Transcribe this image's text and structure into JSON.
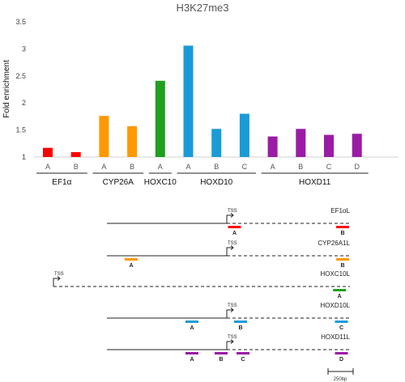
{
  "chart_data": {
    "type": "bar",
    "title": "H3K27me3",
    "ylabel": "Fold enrichment",
    "ylim": [
      1,
      3.5
    ],
    "yticks": [
      "1",
      "1.5",
      "2",
      "2.5",
      "3",
      "3.5"
    ],
    "grid": false,
    "bars": [
      {
        "group": "EF1α",
        "label": "A",
        "value": 1.17,
        "color": "#ff0000"
      },
      {
        "group": "EF1α",
        "label": "B",
        "value": 1.09,
        "color": "#ff0000"
      },
      {
        "group": "CYP26A",
        "label": "A",
        "value": 1.76,
        "color": "#ff9900"
      },
      {
        "group": "CYP26A",
        "label": "B",
        "value": 1.57,
        "color": "#ff9900"
      },
      {
        "group": "HOXC10",
        "label": "A",
        "value": 2.41,
        "color": "#1fa01f"
      },
      {
        "group": "HOXD10",
        "label": "A",
        "value": 3.06,
        "color": "#1a9bd7"
      },
      {
        "group": "HOXD10",
        "label": "B",
        "value": 1.52,
        "color": "#1a9bd7"
      },
      {
        "group": "HOXD10",
        "label": "C",
        "value": 1.8,
        "color": "#1a9bd7"
      },
      {
        "group": "HOXD11",
        "label": "A",
        "value": 1.38,
        "color": "#9b1ba6"
      },
      {
        "group": "HOXD11",
        "label": "B",
        "value": 1.52,
        "color": "#9b1ba6"
      },
      {
        "group": "HOXD11",
        "label": "C",
        "value": 1.41,
        "color": "#9b1ba6"
      },
      {
        "group": "HOXD11",
        "label": "D",
        "value": 1.43,
        "color": "#9b1ba6"
      }
    ],
    "groups": [
      "EF1α",
      "CYP26A",
      "HOXC10",
      "HOXD10",
      "HOXD11"
    ]
  },
  "diagram": {
    "tss_label": "TSS",
    "scale_label": "250bp",
    "genes": [
      {
        "name": "EF1αL",
        "color": "#ff0000",
        "tss_frac": 0.55,
        "regions": [
          {
            "label": "A",
            "pos": 0.525
          },
          {
            "label": "B",
            "pos": 0.97
          }
        ]
      },
      {
        "name": "CYP26A1L",
        "color": "#ff9900",
        "tss_frac": 0.55,
        "regions": [
          {
            "label": "A",
            "pos": 0.1
          },
          {
            "label": "B",
            "pos": 0.97
          }
        ]
      },
      {
        "name": "HOXC10L",
        "color": "#1fa01f",
        "tss_frac": 0.03,
        "regions": [
          {
            "label": "A",
            "pos": 0.965
          }
        ]
      },
      {
        "name": "HOXD10L",
        "color": "#1a9bd7",
        "tss_frac": 0.55,
        "regions": [
          {
            "label": "A",
            "pos": 0.35
          },
          {
            "label": "B",
            "pos": 0.55
          },
          {
            "label": "C",
            "pos": 0.965
          }
        ]
      },
      {
        "name": "HOXD11L",
        "color": "#9b1ba6",
        "tss_frac": 0.55,
        "regions": [
          {
            "label": "A",
            "pos": 0.35
          },
          {
            "label": "B",
            "pos": 0.47
          },
          {
            "label": "C",
            "pos": 0.56
          },
          {
            "label": "D",
            "pos": 0.965
          }
        ]
      }
    ]
  }
}
